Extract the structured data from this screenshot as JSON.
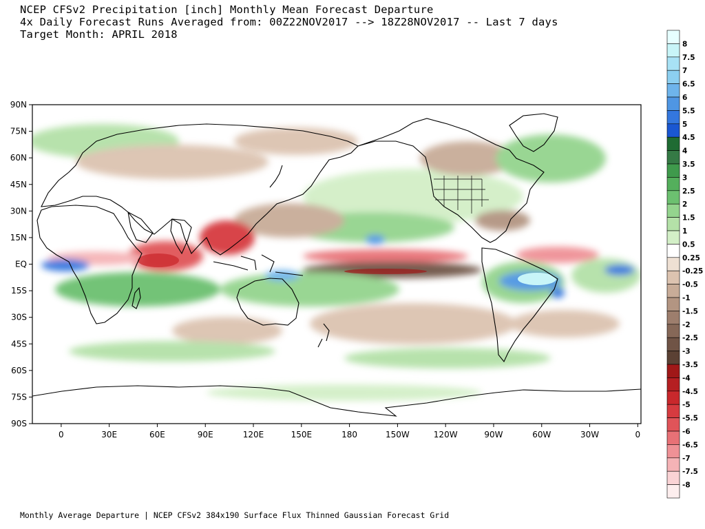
{
  "header": {
    "line1": "NCEP CFSv2 Precipitation [inch] Monthly Mean Forecast Departure",
    "line2": "4x Daily Forecast Runs Averaged from: 00Z22NOV2017 --> 18Z28NOV2017 -- Last 7 days",
    "line3": "Target Month: APRIL 2018"
  },
  "map": {
    "lat_labels": [
      "90N",
      "75N",
      "60N",
      "45N",
      "30N",
      "15N",
      "EQ",
      "15S",
      "30S",
      "45S",
      "60S",
      "75S",
      "90S"
    ],
    "lon_labels": [
      "0",
      "30E",
      "60E",
      "90E",
      "120E",
      "150E",
      "180",
      "150W",
      "120W",
      "90W",
      "60W",
      "30W",
      "0"
    ],
    "background_color": "#ffffff",
    "coastline_color": "#000000"
  },
  "colorbar": {
    "labels": [
      "8",
      "7.5",
      "7",
      "6.5",
      "6",
      "5.5",
      "5",
      "4.5",
      "4",
      "3.5",
      "3",
      "2.5",
      "2",
      "1.5",
      "1",
      "0.5",
      "0.25",
      "-0.25",
      "-0.5",
      "-1",
      "-1.5",
      "-2",
      "-2.5",
      "-3",
      "-3.5",
      "-4",
      "-4.5",
      "-5",
      "-5.5",
      "-6",
      "-6.5",
      "-7",
      "-7.5",
      "-8"
    ],
    "colors": [
      "#e6ffff",
      "#c8f5f8",
      "#a8e2f5",
      "#8ccff0",
      "#6eb4eb",
      "#4f96e3",
      "#3477de",
      "#1a57d2",
      "#1f6b33",
      "#357a45",
      "#3f9a4c",
      "#54af5c",
      "#6cc070",
      "#94d48e",
      "#b4e1a8",
      "#d3efc7",
      "#ffffff",
      "#eee0d3",
      "#dcc3b0",
      "#c8ac98",
      "#b39582",
      "#9d7e6d",
      "#866858",
      "#705446",
      "#5b4134",
      "#a01818",
      "#b51f22",
      "#c9282c",
      "#d63b40",
      "#e05459",
      "#e87176",
      "#ef9196",
      "#f5b3b6",
      "#fad3d5",
      "#fdeeee"
    ]
  },
  "footer": {
    "text": "Monthly Average Departure | NCEP CFSv2 384x190 Surface Flux Thinned Gaussian Forecast Grid"
  }
}
